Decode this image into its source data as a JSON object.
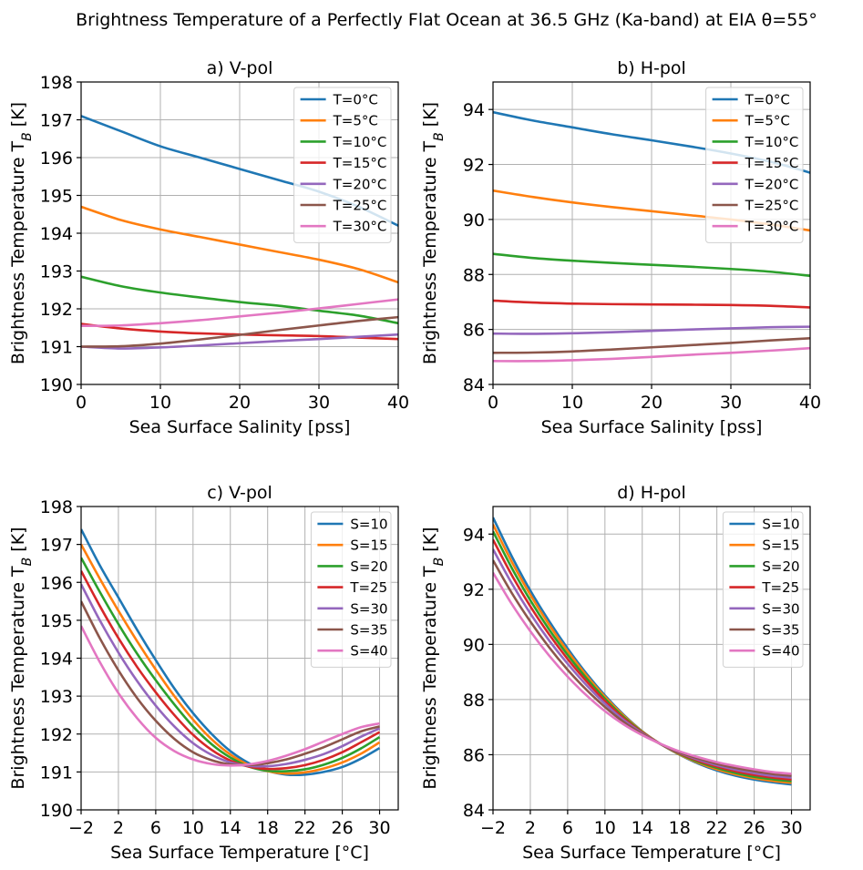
{
  "figure_title": "Brightness Temperature of a Perfectly Flat Ocean at 36.5 GHz (Ka-band) at EIA θ=55°",
  "chart_data": [
    {
      "type": "line",
      "title": "a) V-pol",
      "xlabel": "Sea Surface Salinity [pss]",
      "ylabel": "Brightness Temperature T_B [K]",
      "xlim": [
        0,
        40
      ],
      "ylim": [
        190,
        198
      ],
      "xticks": [
        0,
        10,
        20,
        30,
        40
      ],
      "yticks": [
        190,
        191,
        192,
        193,
        194,
        195,
        196,
        197,
        198
      ],
      "xtick_labels": [
        "0",
        "10",
        "20",
        "30",
        "40"
      ],
      "ytick_labels": [
        "190",
        "191",
        "192",
        "193",
        "194",
        "195",
        "196",
        "197",
        "198"
      ],
      "grid": true,
      "legend_position": "upper right",
      "x": [
        0,
        5,
        10,
        15,
        20,
        25,
        30,
        35,
        40
      ],
      "series": [
        {
          "name": "T=0°C",
          "color": "#1f77b4",
          "values": [
            197.1,
            196.7,
            196.3,
            196.0,
            195.7,
            195.4,
            195.1,
            194.7,
            194.2
          ]
        },
        {
          "name": "T=5°C",
          "color": "#ff7f0e",
          "values": [
            194.7,
            194.35,
            194.1,
            193.9,
            193.7,
            193.5,
            193.3,
            193.05,
            192.7
          ]
        },
        {
          "name": "T=10°C",
          "color": "#2ca02c",
          "values": [
            192.85,
            192.6,
            192.43,
            192.3,
            192.18,
            192.08,
            191.95,
            191.82,
            191.62
          ]
        },
        {
          "name": "T=15°C",
          "color": "#d62728",
          "values": [
            191.6,
            191.48,
            191.4,
            191.35,
            191.32,
            191.3,
            191.28,
            191.24,
            191.2
          ]
        },
        {
          "name": "T=20°C",
          "color": "#9467bd",
          "values": [
            191.0,
            190.95,
            190.98,
            191.03,
            191.09,
            191.15,
            191.2,
            191.26,
            191.32
          ]
        },
        {
          "name": "T=25°C",
          "color": "#8c564b",
          "values": [
            191.0,
            191.01,
            191.08,
            191.19,
            191.31,
            191.44,
            191.56,
            191.68,
            191.78
          ]
        },
        {
          "name": "T=30°C",
          "color": "#e377c2",
          "values": [
            191.55,
            191.56,
            191.62,
            191.7,
            191.8,
            191.9,
            192.01,
            192.13,
            192.25
          ]
        }
      ]
    },
    {
      "type": "line",
      "title": "b) H-pol",
      "xlabel": "Sea Surface Salinity [pss]",
      "ylabel": "Brightness Temperature T_B [K]",
      "xlim": [
        0,
        40
      ],
      "ylim": [
        84,
        95
      ],
      "xticks": [
        0,
        10,
        20,
        30,
        40
      ],
      "yticks": [
        84,
        86,
        88,
        90,
        92,
        94
      ],
      "xtick_labels": [
        "0",
        "10",
        "20",
        "30",
        "40"
      ],
      "ytick_labels": [
        "84",
        "86",
        "88",
        "90",
        "92",
        "94"
      ],
      "grid": true,
      "legend_position": "upper right",
      "x": [
        0,
        5,
        10,
        15,
        20,
        25,
        30,
        35,
        40
      ],
      "series": [
        {
          "name": "T=0°C",
          "color": "#1f77b4",
          "values": [
            93.9,
            93.6,
            93.35,
            93.1,
            92.88,
            92.65,
            92.4,
            92.1,
            91.7
          ]
        },
        {
          "name": "T=5°C",
          "color": "#ff7f0e",
          "values": [
            91.05,
            90.82,
            90.62,
            90.45,
            90.3,
            90.15,
            90.0,
            89.82,
            89.6
          ]
        },
        {
          "name": "T=10°C",
          "color": "#2ca02c",
          "values": [
            88.75,
            88.6,
            88.5,
            88.42,
            88.35,
            88.28,
            88.2,
            88.1,
            87.95
          ]
        },
        {
          "name": "T=15°C",
          "color": "#d62728",
          "values": [
            87.05,
            86.98,
            86.94,
            86.92,
            86.91,
            86.9,
            86.89,
            86.86,
            86.8
          ]
        },
        {
          "name": "T=20°C",
          "color": "#9467bd",
          "values": [
            85.85,
            85.84,
            85.86,
            85.9,
            85.95,
            86.0,
            86.04,
            86.08,
            86.1
          ]
        },
        {
          "name": "T=25°C",
          "color": "#8c564b",
          "values": [
            85.15,
            85.16,
            85.2,
            85.27,
            85.35,
            85.43,
            85.51,
            85.6,
            85.68
          ]
        },
        {
          "name": "T=30°C",
          "color": "#e377c2",
          "values": [
            84.85,
            84.85,
            84.88,
            84.93,
            85.0,
            85.08,
            85.15,
            85.23,
            85.32
          ]
        }
      ]
    },
    {
      "type": "line",
      "title": "c) V-pol",
      "xlabel": "Sea Surface Temperature  [°C]",
      "ylabel": "Brightness Temperature T_B [K]",
      "xlim": [
        -2,
        32
      ],
      "ylim": [
        190,
        198
      ],
      "xticks": [
        -2,
        2,
        6,
        10,
        14,
        18,
        22,
        26,
        30
      ],
      "yticks": [
        190,
        191,
        192,
        193,
        194,
        195,
        196,
        197,
        198
      ],
      "xtick_labels": [
        "−2",
        "2",
        "6",
        "10",
        "14",
        "18",
        "22",
        "26",
        "30"
      ],
      "ytick_labels": [
        "190",
        "191",
        "192",
        "193",
        "194",
        "195",
        "196",
        "197",
        "198"
      ],
      "grid": true,
      "legend_position": "upper right",
      "x": [
        -2,
        0,
        2,
        4,
        6,
        8,
        10,
        12,
        14,
        16,
        18,
        20,
        22,
        24,
        26,
        28,
        30
      ],
      "series": [
        {
          "name": "S=10",
          "color": "#1f77b4",
          "values": [
            197.4,
            196.45,
            195.6,
            194.75,
            193.95,
            193.2,
            192.55,
            192.0,
            191.55,
            191.23,
            191.03,
            190.93,
            190.93,
            191.0,
            191.13,
            191.35,
            191.63
          ]
        },
        {
          "name": "S=15",
          "color": "#ff7f0e",
          "values": [
            197.0,
            196.1,
            195.25,
            194.45,
            193.7,
            193.0,
            192.38,
            191.86,
            191.46,
            191.18,
            191.02,
            190.96,
            190.99,
            191.09,
            191.25,
            191.48,
            191.78
          ]
        },
        {
          "name": "S=20",
          "color": "#2ca02c",
          "values": [
            196.65,
            195.75,
            194.9,
            194.12,
            193.42,
            192.78,
            192.2,
            191.73,
            191.38,
            191.14,
            191.03,
            191.02,
            191.07,
            191.19,
            191.37,
            191.62,
            191.92
          ]
        },
        {
          "name": "T=25",
          "color": "#d62728",
          "values": [
            196.3,
            195.38,
            194.53,
            193.77,
            193.1,
            192.5,
            191.98,
            191.58,
            191.3,
            191.14,
            191.08,
            191.1,
            191.18,
            191.32,
            191.52,
            191.78,
            192.05
          ]
        },
        {
          "name": "S=30",
          "color": "#9467bd",
          "values": [
            195.95,
            195.0,
            194.15,
            193.4,
            192.75,
            192.2,
            191.76,
            191.45,
            191.25,
            191.16,
            191.15,
            191.21,
            191.32,
            191.47,
            191.68,
            191.93,
            192.15
          ]
        },
        {
          "name": "S=35",
          "color": "#8c564b",
          "values": [
            195.5,
            194.53,
            193.68,
            192.95,
            192.35,
            191.87,
            191.52,
            191.31,
            191.2,
            191.18,
            191.23,
            191.33,
            191.48,
            191.65,
            191.86,
            192.07,
            192.2
          ]
        },
        {
          "name": "S=40",
          "color": "#e377c2",
          "values": [
            194.85,
            193.9,
            193.08,
            192.42,
            191.9,
            191.55,
            191.33,
            191.21,
            191.17,
            191.2,
            191.29,
            191.43,
            191.6,
            191.8,
            192.0,
            192.18,
            192.28
          ]
        }
      ]
    },
    {
      "type": "line",
      "title": "d) H-pol",
      "xlabel": "Sea Surface Temperature  [°C]",
      "ylabel": "Brightness Temperature T_B [K]",
      "xlim": [
        -2,
        32
      ],
      "ylim": [
        84,
        95
      ],
      "xticks": [
        -2,
        2,
        6,
        10,
        14,
        18,
        22,
        26,
        30
      ],
      "yticks": [
        84,
        86,
        88,
        90,
        92,
        94
      ],
      "xtick_labels": [
        "−2",
        "2",
        "6",
        "10",
        "14",
        "18",
        "22",
        "26",
        "30"
      ],
      "ytick_labels": [
        "84",
        "86",
        "88",
        "90",
        "92",
        "94"
      ],
      "grid": true,
      "legend_position": "upper right",
      "x": [
        -2,
        0,
        2,
        4,
        6,
        8,
        10,
        12,
        14,
        16,
        18,
        20,
        22,
        24,
        26,
        28,
        30
      ],
      "series": [
        {
          "name": "S=10",
          "color": "#1f77b4",
          "values": [
            94.6,
            93.2,
            91.95,
            90.85,
            89.85,
            88.95,
            88.15,
            87.45,
            86.85,
            86.38,
            86.0,
            85.68,
            85.43,
            85.24,
            85.1,
            85.0,
            84.92
          ]
        },
        {
          "name": "S=15",
          "color": "#ff7f0e",
          "values": [
            94.35,
            93.0,
            91.8,
            90.72,
            89.75,
            88.88,
            88.1,
            87.42,
            86.84,
            86.38,
            86.01,
            85.71,
            85.47,
            85.29,
            85.15,
            85.05,
            84.98
          ]
        },
        {
          "name": "S=20",
          "color": "#2ca02c",
          "values": [
            94.1,
            92.78,
            91.6,
            90.55,
            89.62,
            88.78,
            88.03,
            87.37,
            86.82,
            86.38,
            86.03,
            85.74,
            85.52,
            85.34,
            85.2,
            85.11,
            85.04
          ]
        },
        {
          "name": "T=25",
          "color": "#d62728",
          "values": [
            93.8,
            92.52,
            91.38,
            90.37,
            89.47,
            88.67,
            87.95,
            87.32,
            86.8,
            86.38,
            86.05,
            85.78,
            85.57,
            85.4,
            85.27,
            85.17,
            85.1
          ]
        },
        {
          "name": "S=30",
          "color": "#9467bd",
          "values": [
            93.45,
            92.22,
            91.12,
            90.15,
            89.3,
            88.53,
            87.85,
            87.26,
            86.78,
            86.38,
            86.07,
            85.82,
            85.62,
            85.46,
            85.33,
            85.23,
            85.17
          ]
        },
        {
          "name": "S=35",
          "color": "#8c564b",
          "values": [
            93.05,
            91.87,
            90.83,
            89.9,
            89.08,
            88.36,
            87.73,
            87.19,
            86.75,
            86.38,
            86.09,
            85.86,
            85.67,
            85.52,
            85.4,
            85.3,
            85.24
          ]
        },
        {
          "name": "S=40",
          "color": "#e377c2",
          "values": [
            92.6,
            91.47,
            90.48,
            89.6,
            88.83,
            88.16,
            87.58,
            87.1,
            86.71,
            86.39,
            86.12,
            85.91,
            85.73,
            85.59,
            85.47,
            85.37,
            85.31
          ]
        }
      ]
    }
  ]
}
